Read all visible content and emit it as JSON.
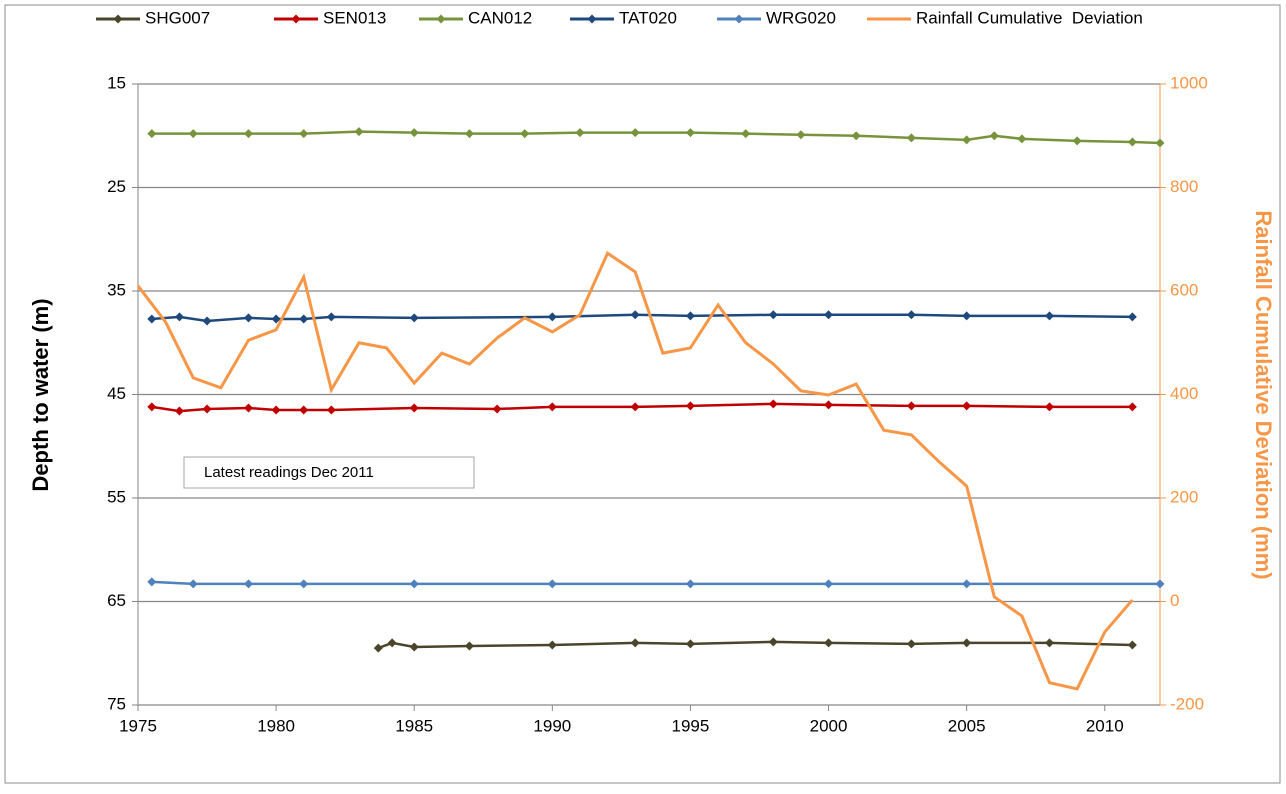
{
  "chart_data": {
    "type": "line",
    "annotation": "Latest readings Dec 2011",
    "y_label": "Depth to water (m)",
    "y2_label": "Rainfall Cumulative Deviation (mm)",
    "xlim": [
      1975,
      2012
    ],
    "xticks": [
      1975,
      1980,
      1985,
      1990,
      1995,
      2000,
      2005,
      2010
    ],
    "ylim": [
      15,
      75
    ],
    "yticks": [
      15,
      25,
      35,
      45,
      55,
      65,
      75
    ],
    "y_inverted": true,
    "y2lim": [
      -200,
      1000
    ],
    "y2ticks": [
      -200,
      0,
      200,
      400,
      600,
      800,
      1000
    ],
    "grid": true,
    "legend": "top",
    "series": [
      {
        "name": "SHG007",
        "color": "#4a452a",
        "marker": "diamond",
        "x": [
          1983.7,
          1984.2,
          1985,
          1987,
          1990,
          1993,
          1995,
          1998,
          2000,
          2003,
          2005,
          2008,
          2011
        ],
        "values": [
          69.5,
          69.0,
          69.4,
          69.3,
          69.2,
          69.0,
          69.1,
          68.9,
          69.0,
          69.1,
          69.0,
          69.0,
          69.2
        ]
      },
      {
        "name": "SEN013",
        "color": "#c00000",
        "marker": "diamond",
        "x": [
          1975.5,
          1976.5,
          1977.5,
          1979,
          1980,
          1981,
          1982,
          1985,
          1988,
          1990,
          1993,
          1995,
          1998,
          2000,
          2003,
          2005,
          2008,
          2011
        ],
        "values": [
          46.2,
          46.6,
          46.4,
          46.3,
          46.5,
          46.5,
          46.5,
          46.3,
          46.4,
          46.2,
          46.2,
          46.1,
          45.9,
          46.0,
          46.1,
          46.1,
          46.2,
          46.2
        ]
      },
      {
        "name": "CAN012",
        "color": "#77933c",
        "marker": "diamond",
        "x": [
          1975.5,
          1977,
          1979,
          1981,
          1983,
          1985,
          1987,
          1989,
          1991,
          1993,
          1995,
          1997,
          1999,
          2001,
          2003,
          2005,
          2006,
          2007,
          2009,
          2011,
          2012
        ],
        "values": [
          19.8,
          19.8,
          19.8,
          19.8,
          19.6,
          19.7,
          19.8,
          19.8,
          19.7,
          19.7,
          19.7,
          19.8,
          19.9,
          20.0,
          20.2,
          20.4,
          20.0,
          20.3,
          20.5,
          20.6,
          20.7
        ]
      },
      {
        "name": "TAT020",
        "color": "#1f497d",
        "marker": "diamond",
        "x": [
          1975.5,
          1976.5,
          1977.5,
          1979,
          1980,
          1981,
          1982,
          1985,
          1990,
          1993,
          1995,
          1998,
          2000,
          2003,
          2005,
          2008,
          2011
        ],
        "values": [
          37.7,
          37.5,
          37.9,
          37.6,
          37.7,
          37.7,
          37.5,
          37.6,
          37.5,
          37.3,
          37.4,
          37.3,
          37.3,
          37.3,
          37.4,
          37.4,
          37.5
        ]
      },
      {
        "name": "WRG020",
        "color": "#4f81bd",
        "marker": "diamond",
        "x": [
          1975.5,
          1977,
          1979,
          1981,
          1985,
          1990,
          1995,
          2000,
          2005,
          2012
        ],
        "values": [
          63.1,
          63.3,
          63.3,
          63.3,
          63.3,
          63.3,
          63.3,
          63.3,
          63.3,
          63.3
        ]
      },
      {
        "name": "Rainfall Cumulative  Deviation",
        "color": "#f79646",
        "axis": "y2",
        "x": [
          1975,
          1976,
          1977,
          1978,
          1979,
          1980,
          1981,
          1982,
          1983,
          1984,
          1985,
          1986,
          1987,
          1988,
          1989,
          1990,
          1991,
          1992,
          1993,
          1994,
          1995,
          1996,
          1997,
          1998,
          1999,
          2000,
          2001,
          2002,
          2003,
          2004,
          2005,
          2006,
          2007,
          2008,
          2009,
          2010,
          2011
        ],
        "values": [
          610,
          540,
          432,
          413,
          505,
          525,
          627,
          409,
          500,
          490,
          422,
          480,
          459,
          509,
          548,
          521,
          554,
          673,
          637,
          480,
          490,
          573,
          500,
          459,
          407,
          399,
          420,
          331,
          322,
          270,
          223,
          9,
          -28,
          -157,
          -169,
          -59,
          3
        ]
      }
    ]
  }
}
